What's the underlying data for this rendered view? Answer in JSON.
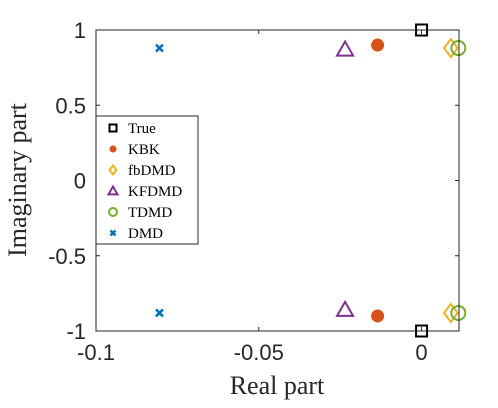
{
  "chart_data": {
    "type": "scatter",
    "xlabel": "Real part",
    "ylabel": "Imaginary part",
    "xlim": [
      -0.1,
      0.0115
    ],
    "ylim": [
      -1,
      1
    ],
    "xticks": [
      -0.1,
      -0.05,
      0
    ],
    "xtick_labels": [
      "-0.1",
      "-0.05",
      "0"
    ],
    "yticks": [
      1,
      0.5,
      0,
      -0.5,
      -1
    ],
    "ytick_labels": [
      "1",
      "0.5",
      "0",
      "-0.5",
      "-1"
    ],
    "grid": false,
    "legend_position": "left",
    "series": [
      {
        "name": "True",
        "marker": "square",
        "color": "#000000",
        "x": [
          0,
          0
        ],
        "y": [
          1,
          -1
        ]
      },
      {
        "name": "KBK",
        "marker": "dot",
        "color": "#D95319",
        "x": [
          -0.0135,
          -0.0135
        ],
        "y": [
          0.9,
          -0.9
        ]
      },
      {
        "name": "fbDMD",
        "marker": "diamond",
        "color": "#EDB120",
        "x": [
          0.009,
          0.009
        ],
        "y": [
          0.88,
          -0.88
        ]
      },
      {
        "name": "KFDMD",
        "marker": "triangle",
        "color": "#7E2F8E",
        "x": [
          -0.0235,
          -0.0235
        ],
        "y": [
          0.87,
          -0.86
        ]
      },
      {
        "name": "TDMD",
        "marker": "circle",
        "color": "#77AC30",
        "x": [
          0.0113,
          0.0113
        ],
        "y": [
          0.88,
          -0.88
        ]
      },
      {
        "name": "DMD",
        "marker": "cross",
        "color": "#0072BD",
        "x": [
          -0.0805,
          -0.0805
        ],
        "y": [
          0.88,
          -0.88
        ]
      }
    ]
  }
}
